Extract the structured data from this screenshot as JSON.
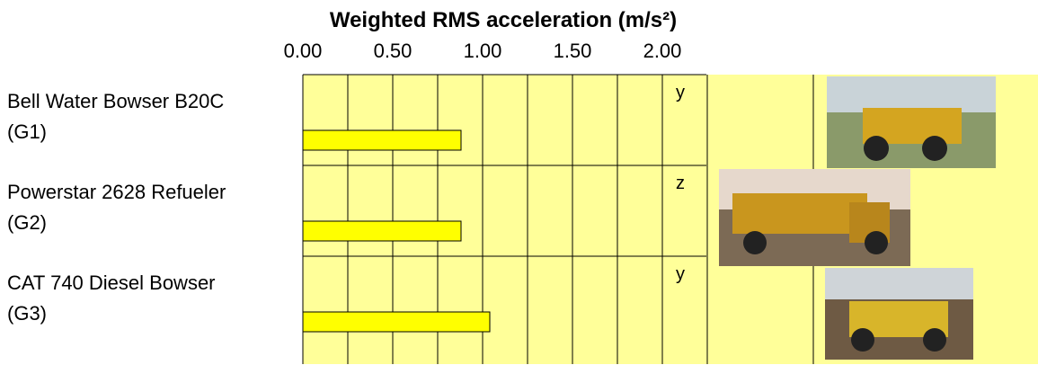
{
  "chart_data": {
    "type": "bar",
    "orientation": "horizontal",
    "title": "Weighted RMS acceleration (m/s²)",
    "categories": [
      "Bell Water Bowser B20C\n(G1)",
      "Powerstar 2628 Refueler\n(G2)",
      "CAT 740 Diesel Bowser\n(G3)"
    ],
    "values": [
      0.88,
      0.88,
      1.04
    ],
    "annotations": [
      "y",
      "z",
      "y"
    ],
    "color": "#ffff00",
    "background": "#ffff99",
    "xlim": [
      0,
      4.09
    ],
    "xticks": [
      {
        "value": 0,
        "label": "0.00"
      },
      {
        "value": 0.5,
        "label": "0.50"
      },
      {
        "value": 1,
        "label": "1.00"
      },
      {
        "value": 1.5,
        "label": "1.50"
      },
      {
        "value": 2,
        "label": "2.00"
      }
    ],
    "minor_xticks": [
      0.25,
      0.75,
      1.25,
      1.75,
      2.25
    ],
    "grid": true
  }
}
